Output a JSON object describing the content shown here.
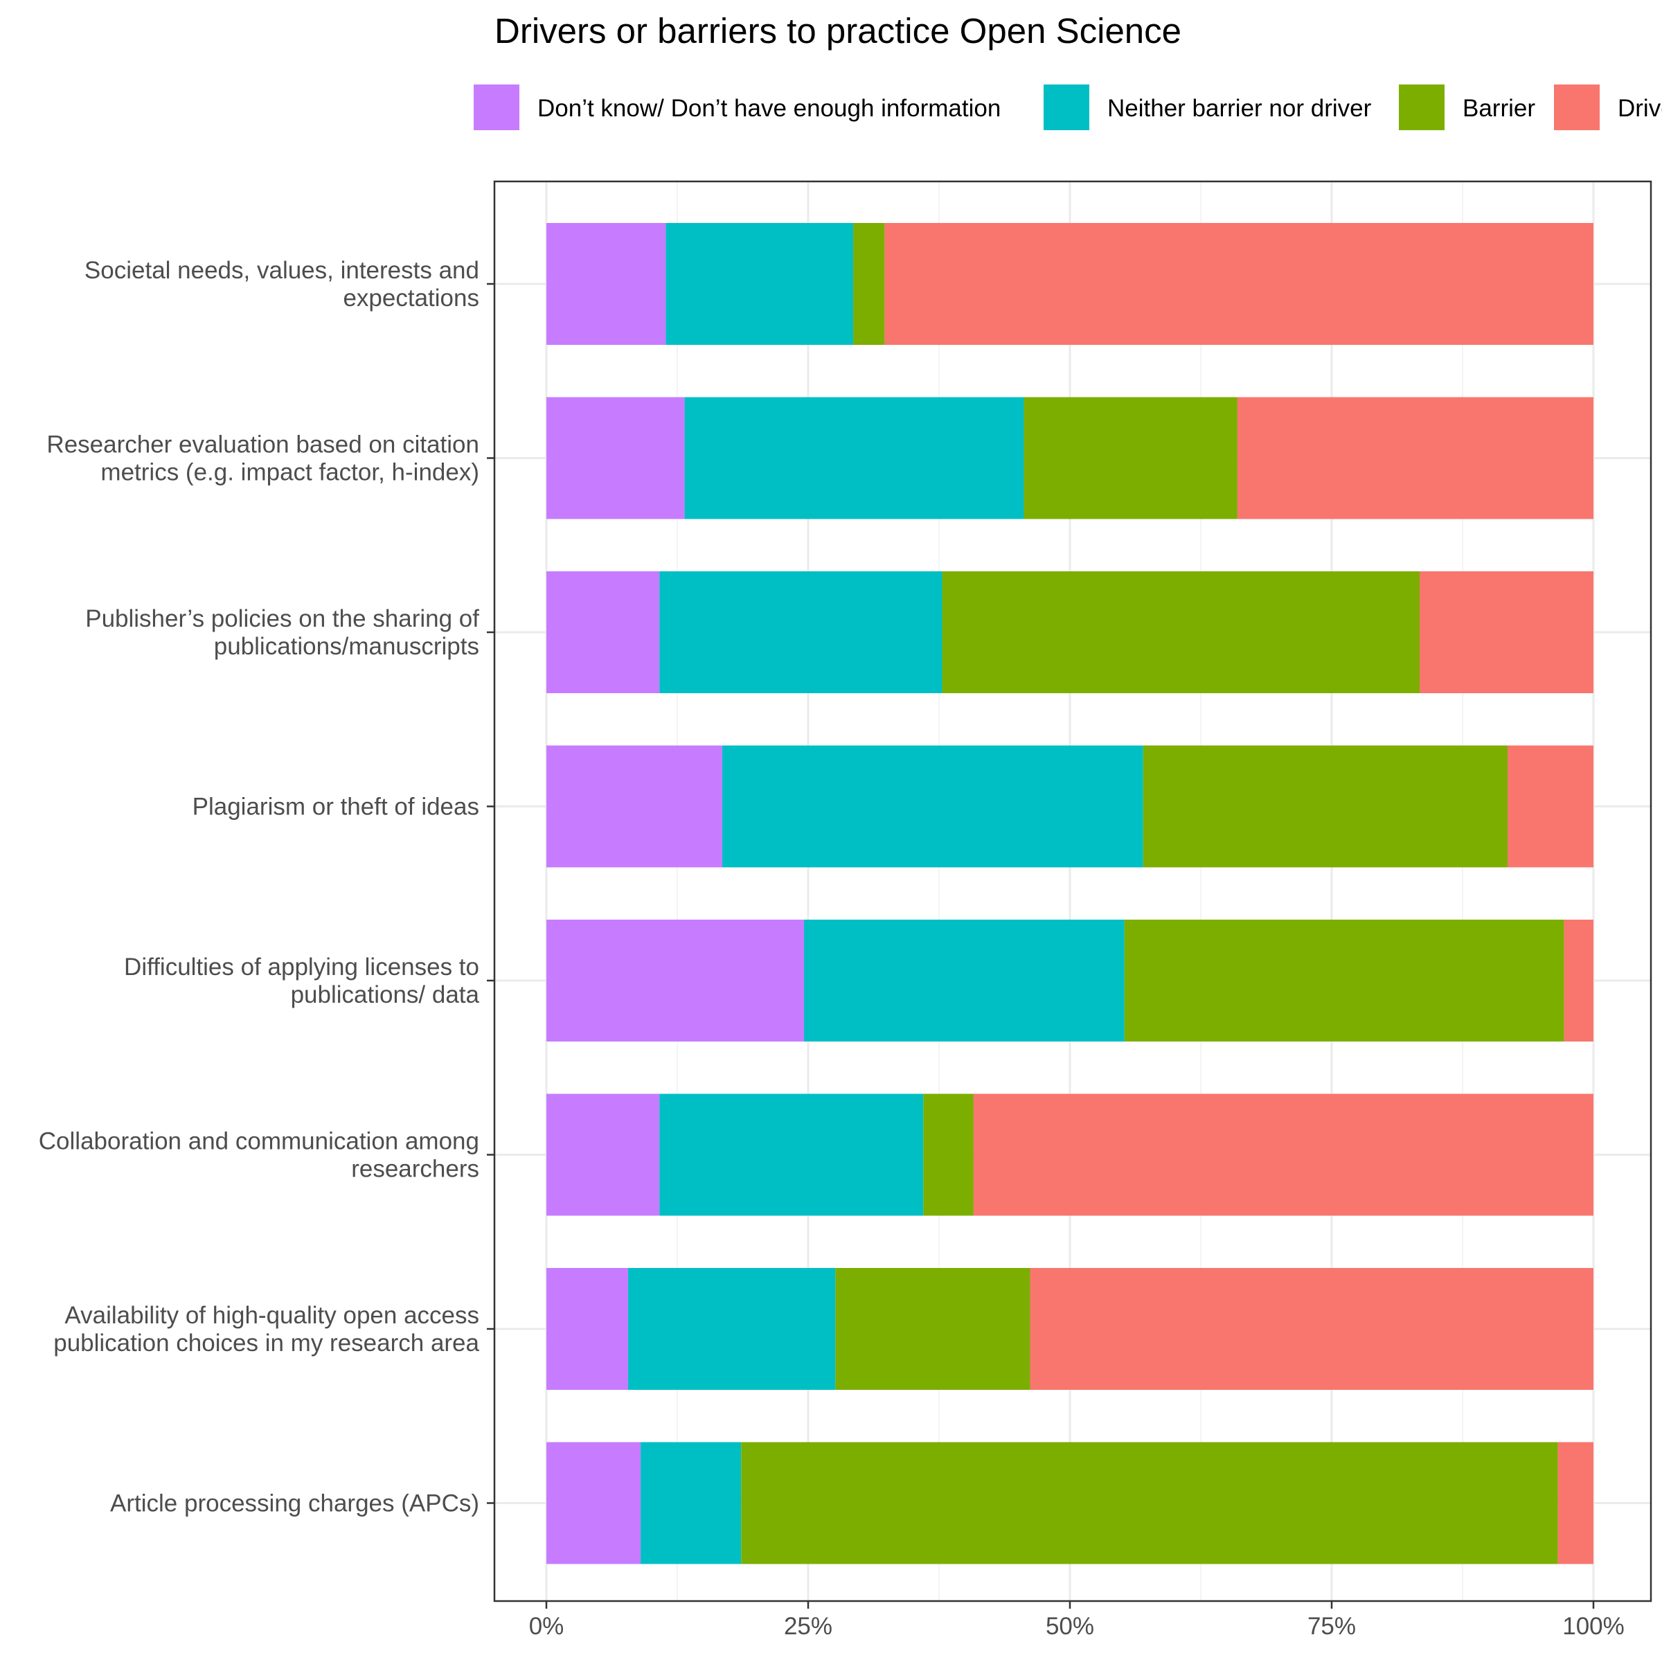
{
  "chart_data": {
    "type": "bar",
    "orientation": "horizontal",
    "stacked": "percent",
    "title": "Drivers or barriers to practice Open Science",
    "legend_position": "top",
    "grid": true,
    "xlim": [
      0,
      100
    ],
    "xticks": [
      "0%",
      "25%",
      "50%",
      "75%",
      "100%"
    ],
    "categories": [
      [
        "Societal needs, values, interests and",
        "expectations"
      ],
      [
        "Researcher evaluation based on citation",
        "metrics (e.g. impact factor, h-index)"
      ],
      [
        "Publisher’s policies on the sharing of",
        "publications/manuscripts"
      ],
      [
        "Plagiarism or theft of ideas"
      ],
      [
        "Difficulties of applying licenses to",
        "publications/ data"
      ],
      [
        "Collaboration and communication among",
        "researchers"
      ],
      [
        "Availability of high-quality open access",
        "publication choices in my research area"
      ],
      [
        "Article processing charges (APCs)"
      ]
    ],
    "series": [
      {
        "name": "Don’t know/ Don’t have enough information",
        "color": "#C77CFF",
        "values": [
          11.4,
          13.2,
          10.8,
          16.8,
          24.6,
          10.8,
          7.8,
          9.0
        ]
      },
      {
        "name": "Neither barrier nor driver",
        "color": "#00BFC4",
        "values": [
          17.9,
          32.4,
          27.0,
          40.2,
          30.6,
          25.2,
          19.8,
          9.6
        ]
      },
      {
        "name": "Barrier",
        "color": "#7CAE00",
        "values": [
          3.0,
          20.4,
          45.6,
          34.8,
          42.0,
          4.8,
          18.6,
          78.0
        ]
      },
      {
        "name": "Driver",
        "color": "#F8766D",
        "values": [
          67.7,
          34.0,
          16.6,
          8.2,
          2.8,
          59.2,
          53.8,
          3.4
        ]
      }
    ]
  }
}
